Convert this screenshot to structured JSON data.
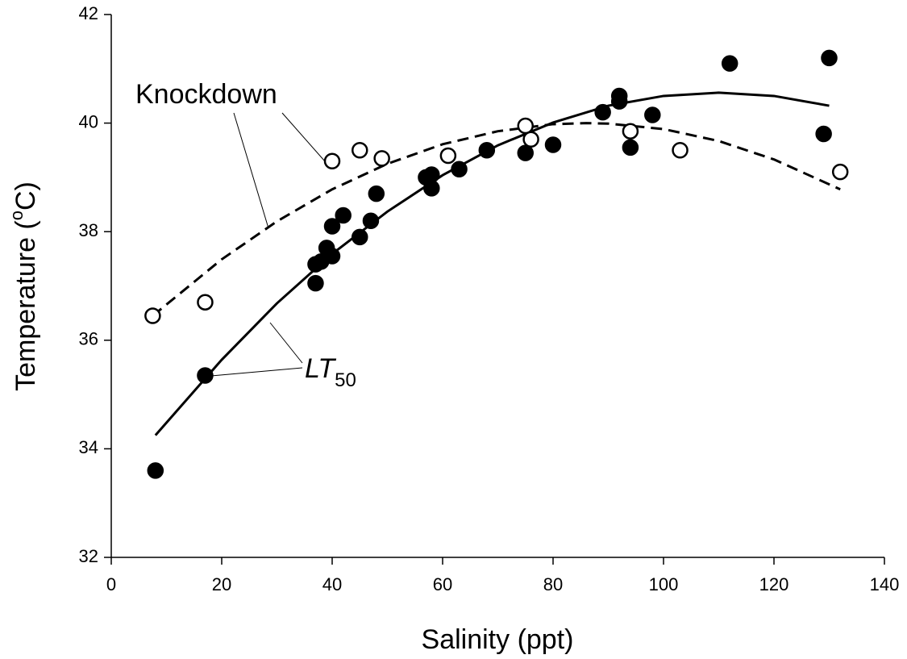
{
  "chart_data": {
    "type": "scatter",
    "x_label": "Salinity (ppt)",
    "y_label": {
      "text": "Temperature (",
      "superscript": "o",
      "suffix": "C)"
    },
    "xlim": [
      0,
      140
    ],
    "xticks": [
      0,
      20,
      40,
      60,
      80,
      100,
      120,
      140
    ],
    "ylim": [
      32,
      42
    ],
    "yticks": [
      32,
      34,
      36,
      38,
      40,
      42
    ],
    "series": [
      {
        "marker": "filled",
        "color": "#000000",
        "x": [
          8,
          17,
          37,
          37,
          38,
          39,
          40,
          40,
          42,
          45,
          47,
          48,
          57,
          58,
          58,
          63,
          68,
          75,
          80,
          89,
          92,
          92,
          94,
          98,
          112,
          129,
          130
        ],
        "values": [
          33.6,
          35.35,
          37.05,
          37.4,
          37.45,
          37.7,
          37.55,
          38.1,
          38.3,
          37.9,
          38.2,
          38.7,
          39.0,
          38.8,
          39.05,
          39.15,
          39.5,
          39.45,
          39.6,
          40.2,
          40.5,
          40.4,
          39.55,
          40.15,
          41.1,
          39.8,
          41.2
        ]
      },
      {
        "marker": "open",
        "color": "#000000",
        "x": [
          7.5,
          17,
          40,
          45,
          49,
          61,
          75,
          76,
          94,
          103,
          132
        ],
        "values": [
          36.45,
          36.7,
          39.3,
          39.5,
          39.35,
          39.4,
          39.95,
          39.7,
          39.85,
          39.5,
          39.1
        ]
      }
    ],
    "fits": [
      {
        "dashed": false,
        "color": "#000000",
        "x": [
          8,
          20,
          30,
          40,
          50,
          60,
          70,
          80,
          90,
          100,
          110,
          120,
          130
        ],
        "values": [
          34.25,
          35.64,
          36.68,
          37.59,
          38.37,
          39.04,
          39.59,
          40.01,
          40.32,
          40.5,
          40.56,
          40.5,
          40.32
        ]
      },
      {
        "dashed": true,
        "color": "#000000",
        "x": [
          7.5,
          20,
          30,
          40,
          50,
          60,
          70,
          80,
          86,
          90,
          100,
          110,
          120,
          132
        ],
        "values": [
          36.45,
          37.49,
          38.19,
          38.78,
          39.25,
          39.61,
          39.85,
          39.98,
          40.0,
          39.99,
          39.89,
          39.67,
          39.33,
          38.78
        ]
      }
    ],
    "annotations": [
      {
        "text": "Knockdown"
      },
      {
        "text": "LT",
        "subscript": "50"
      }
    ]
  }
}
